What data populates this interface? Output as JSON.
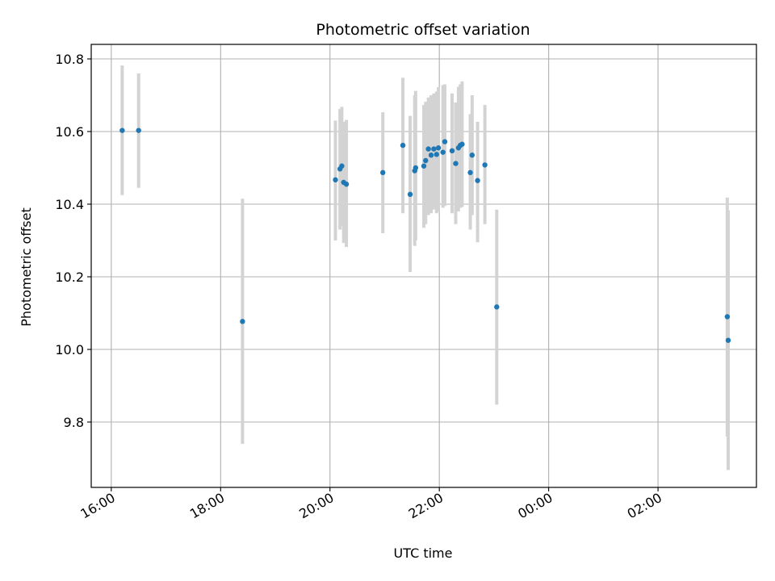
{
  "chart_data": {
    "type": "scatter",
    "title": "Photometric offset variation",
    "xlabel": "UTC time",
    "ylabel": "Photometric offset",
    "grid": true,
    "x_axis": "time",
    "xlim": [
      "15:38",
      "27:48"
    ],
    "ylim": [
      9.62,
      10.84
    ],
    "x_ticks": [
      "16:00",
      "18:00",
      "20:00",
      "22:00",
      "00:00",
      "02:00"
    ],
    "y_ticks": [
      "9.8",
      "10.0",
      "10.2",
      "10.4",
      "10.6",
      "10.8"
    ],
    "marker_color": "#1f77b4",
    "errorbar_color": "#d3d3d3",
    "series": [
      {
        "points": [
          {
            "x": "16:12",
            "y": 10.603,
            "ylo": 10.425,
            "yhi": 10.782
          },
          {
            "x": "16:30",
            "y": 10.603,
            "ylo": 10.445,
            "yhi": 10.76
          },
          {
            "x": "18:24",
            "y": 10.077,
            "ylo": 9.74,
            "yhi": 10.415
          },
          {
            "x": "20:06",
            "y": 10.467,
            "ylo": 10.3,
            "yhi": 10.63
          },
          {
            "x": "20:11",
            "y": 10.497,
            "ylo": 10.33,
            "yhi": 10.662
          },
          {
            "x": "20:13",
            "y": 10.505,
            "ylo": 10.34,
            "yhi": 10.668
          },
          {
            "x": "20:15",
            "y": 10.46,
            "ylo": 10.293,
            "yhi": 10.627
          },
          {
            "x": "20:18",
            "y": 10.455,
            "ylo": 10.282,
            "yhi": 10.632
          },
          {
            "x": "20:58",
            "y": 10.487,
            "ylo": 10.32,
            "yhi": 10.653
          },
          {
            "x": "21:20",
            "y": 10.562,
            "ylo": 10.375,
            "yhi": 10.748
          },
          {
            "x": "21:28",
            "y": 10.427,
            "ylo": 10.213,
            "yhi": 10.643
          },
          {
            "x": "21:33",
            "y": 10.492,
            "ylo": 10.285,
            "yhi": 10.7
          },
          {
            "x": "21:34",
            "y": 10.5,
            "ylo": 10.3,
            "yhi": 10.712
          },
          {
            "x": "21:43",
            "y": 10.505,
            "ylo": 10.335,
            "yhi": 10.673
          },
          {
            "x": "21:45",
            "y": 10.52,
            "ylo": 10.345,
            "yhi": 10.682
          },
          {
            "x": "21:48",
            "y": 10.552,
            "ylo": 10.37,
            "yhi": 10.694
          },
          {
            "x": "21:51",
            "y": 10.535,
            "ylo": 10.375,
            "yhi": 10.7
          },
          {
            "x": "21:54",
            "y": 10.552,
            "ylo": 10.385,
            "yhi": 10.705
          },
          {
            "x": "21:57",
            "y": 10.537,
            "ylo": 10.375,
            "yhi": 10.71
          },
          {
            "x": "21:59",
            "y": 10.555,
            "ylo": 10.38,
            "yhi": 10.722
          },
          {
            "x": "22:04",
            "y": 10.543,
            "ylo": 10.39,
            "yhi": 10.728
          },
          {
            "x": "22:06",
            "y": 10.572,
            "ylo": 10.395,
            "yhi": 10.73
          },
          {
            "x": "22:14",
            "y": 10.547,
            "ylo": 10.375,
            "yhi": 10.705
          },
          {
            "x": "22:18",
            "y": 10.512,
            "ylo": 10.345,
            "yhi": 10.68
          },
          {
            "x": "22:21",
            "y": 10.555,
            "ylo": 10.38,
            "yhi": 10.723
          },
          {
            "x": "22:23",
            "y": 10.562,
            "ylo": 10.39,
            "yhi": 10.73
          },
          {
            "x": "22:25",
            "y": 10.565,
            "ylo": 10.392,
            "yhi": 10.738
          },
          {
            "x": "22:34",
            "y": 10.487,
            "ylo": 10.33,
            "yhi": 10.648
          },
          {
            "x": "22:36",
            "y": 10.535,
            "ylo": 10.37,
            "yhi": 10.7
          },
          {
            "x": "22:42",
            "y": 10.465,
            "ylo": 10.295,
            "yhi": 10.627
          },
          {
            "x": "22:50",
            "y": 10.508,
            "ylo": 10.345,
            "yhi": 10.673
          },
          {
            "x": "23:03",
            "y": 10.117,
            "ylo": 9.848,
            "yhi": 10.385
          },
          {
            "x": "27:16",
            "y": 10.09,
            "ylo": 9.76,
            "yhi": 10.418
          },
          {
            "x": "27:17",
            "y": 10.025,
            "ylo": 9.668,
            "yhi": 10.383
          }
        ]
      }
    ]
  }
}
